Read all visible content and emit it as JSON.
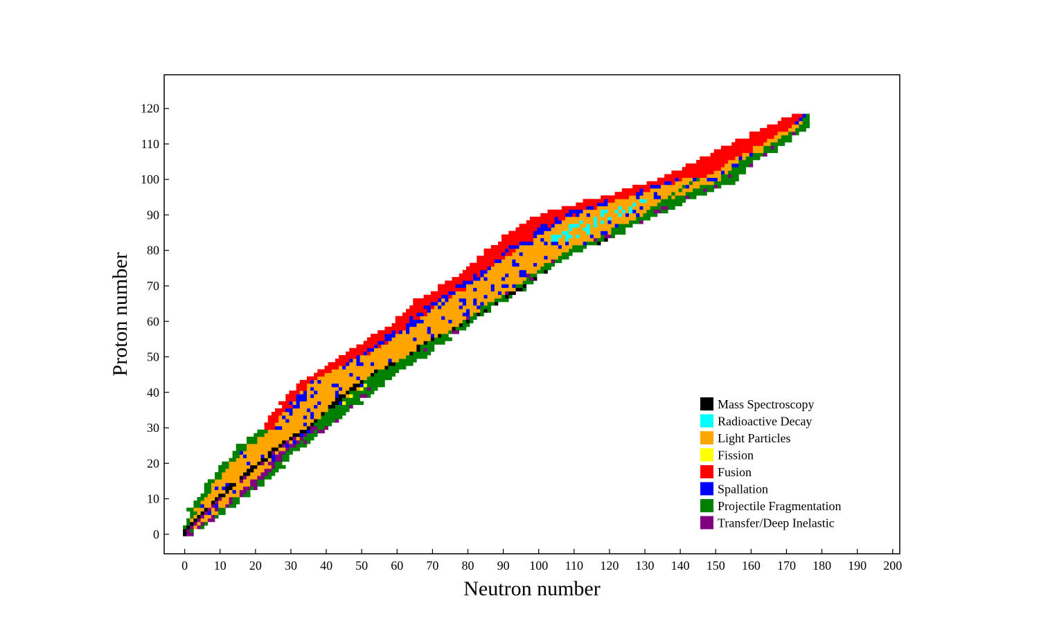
{
  "chart_data": {
    "type": "heatmap",
    "title": "",
    "xlabel": "Neutron number",
    "ylabel": "Proton number",
    "xlim": [
      -5.8,
      202
    ],
    "ylim": [
      -5.5,
      129.5
    ],
    "xticks": [
      0,
      10,
      20,
      30,
      40,
      50,
      60,
      70,
      80,
      90,
      100,
      110,
      120,
      130,
      140,
      150,
      160,
      170,
      180,
      190,
      200
    ],
    "yticks": [
      0,
      10,
      20,
      30,
      40,
      50,
      60,
      70,
      80,
      90,
      100,
      110,
      120
    ],
    "tick_direction": "in",
    "grid": false,
    "legend_position": "lower-right",
    "categories": [
      {
        "name": "Mass Spectroscopy",
        "color": "#000000"
      },
      {
        "name": "Radioactive Decay",
        "color": "#00ffff"
      },
      {
        "name": "Light Particles",
        "color": "#ffa500"
      },
      {
        "name": "Fission",
        "color": "#ffff00"
      },
      {
        "name": "Fusion",
        "color": "#ff0000"
      },
      {
        "name": "Spallation",
        "color": "#0000ff"
      },
      {
        "name": "Projectile Fragmentation",
        "color": "#008000"
      },
      {
        "name": "Transfer/Deep Inelastic",
        "color": "#800080"
      }
    ],
    "band_profile": {
      "z": [
        1,
        5,
        10,
        15,
        20,
        25,
        30,
        35,
        40,
        45,
        50,
        55,
        60,
        65,
        70,
        75,
        80,
        85,
        90,
        95,
        100,
        105,
        110,
        115,
        118
      ],
      "n_min": [
        0,
        1,
        4,
        8,
        12,
        16,
        22,
        26,
        30,
        37,
        44,
        52,
        60,
        64,
        73,
        80,
        86,
        92,
        100,
        117,
        135,
        144,
        155,
        165,
        172
      ],
      "n_max": [
        3,
        9,
        16,
        22,
        28,
        33,
        41,
        46,
        53,
        60,
        67,
        74,
        81,
        89,
        96,
        103,
        112,
        123,
        132,
        145,
        156,
        160,
        170,
        175,
        177
      ],
      "stable_n": [
        0,
        4,
        9,
        15,
        21,
        27,
        35,
        40,
        46,
        53,
        62,
        70,
        80,
        88,
        96,
        104,
        115,
        122,
        129,
        136,
        144,
        150,
        158,
        166,
        170
      ]
    }
  }
}
